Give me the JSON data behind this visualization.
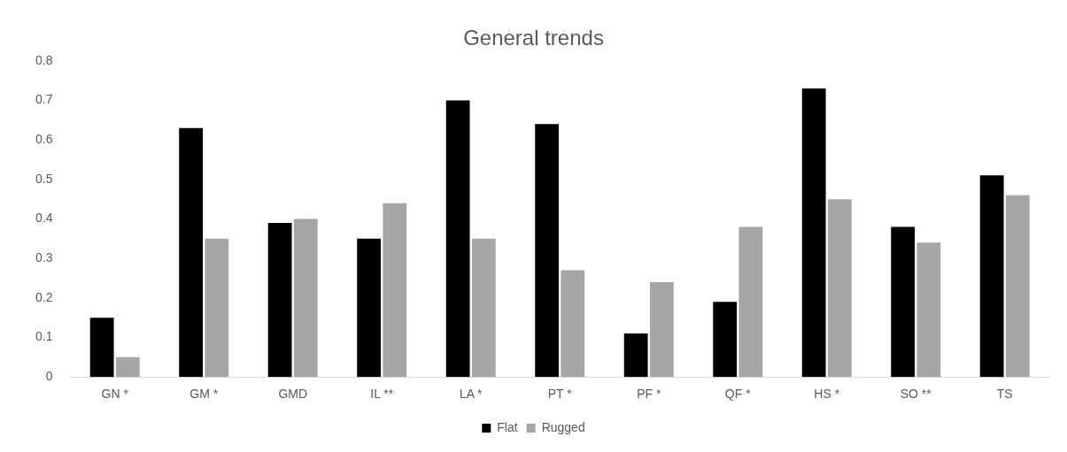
{
  "chart_data": {
    "type": "bar",
    "title": "General trends",
    "categories": [
      "GN *",
      "GM *",
      "GMD",
      "IL **",
      "LA *",
      "PT *",
      "PF *",
      "QF *",
      "HS *",
      "SO **",
      "TS"
    ],
    "series": [
      {
        "name": "Flat",
        "color": "#000000",
        "values": [
          0.15,
          0.63,
          0.39,
          0.35,
          0.7,
          0.64,
          0.11,
          0.19,
          0.73,
          0.38,
          0.51
        ]
      },
      {
        "name": "Rugged",
        "color": "#a6a6a6",
        "values": [
          0.05,
          0.35,
          0.4,
          0.44,
          0.35,
          0.27,
          0.24,
          0.38,
          0.45,
          0.34,
          0.46
        ]
      }
    ],
    "ylim": [
      0,
      0.8
    ],
    "yticks": [
      0,
      0.1,
      0.2,
      0.3,
      0.4,
      0.5,
      0.6,
      0.7,
      0.8
    ],
    "grid": false,
    "legend": "bottom"
  }
}
